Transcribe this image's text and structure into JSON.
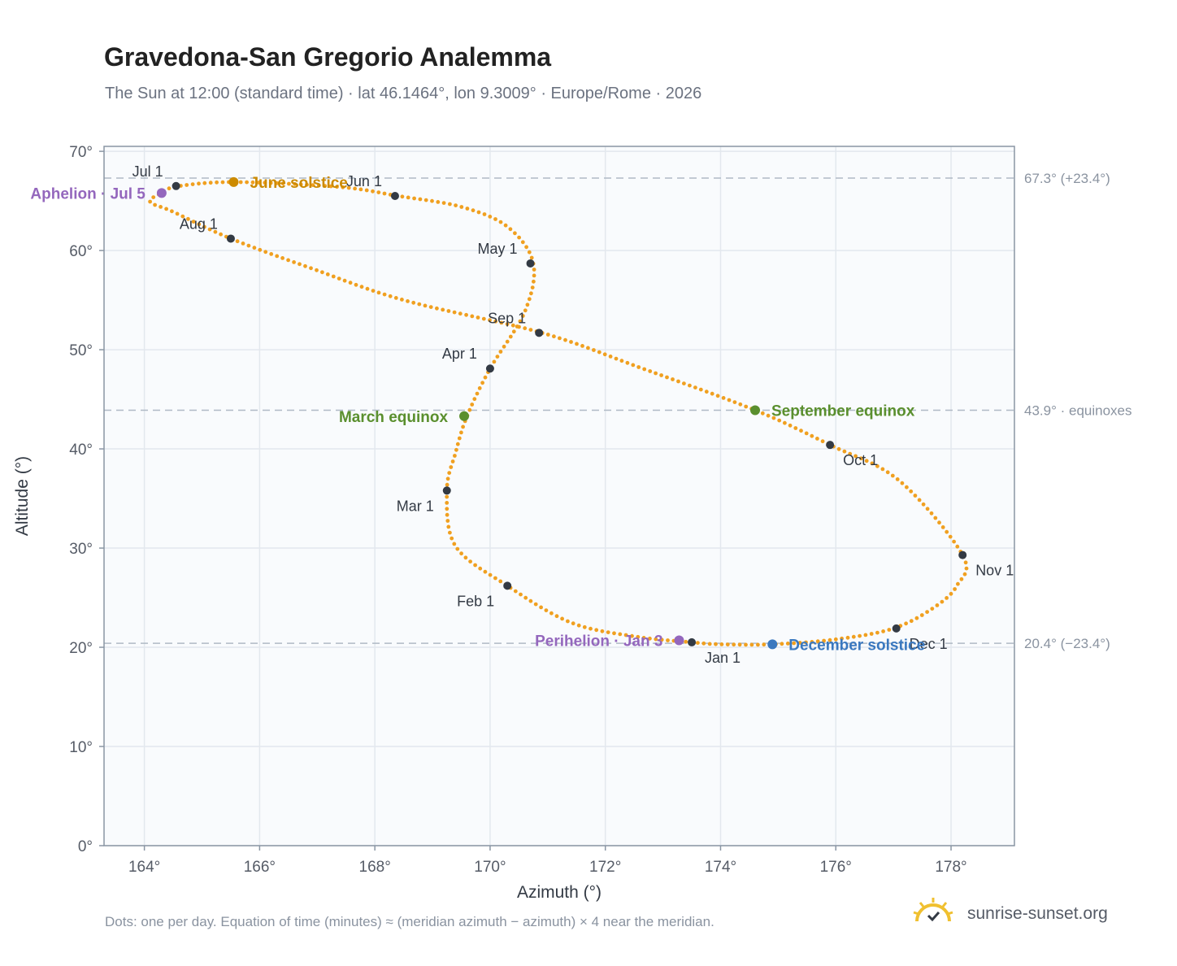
{
  "header": {
    "title": "Gravedona-San Gregorio Analemma",
    "subtitle": "The Sun at 12:00 (standard time) · lat 46.1464°, lon 9.3009° · Europe/Rome · 2026"
  },
  "footer": {
    "note": "Dots: one per day. Equation of time (minutes) ≈ (meridian azimuth − azimuth) × 4 near the meridian.",
    "brand": "sunrise-sunset.org"
  },
  "colors": {
    "curve": "#f0a020",
    "month_marker": "#333a44",
    "solstice_june": "#cc8a00",
    "equinox": "#5a8f2e",
    "solstice_december": "#3a78bf",
    "apsis": "#9467bd",
    "reference_line": "#b0bac5",
    "plot_background": "#f9fbfd",
    "grid": "#e3e8ee",
    "frame": "#8a96a4",
    "logo": "#f0c030"
  },
  "chart_data": {
    "type": "scatter",
    "title": "Gravedona-San Gregorio Analemma",
    "xlabel": "Azimuth (°)",
    "ylabel": "Altitude (°)",
    "xlim": [
      163.3,
      179.1
    ],
    "ylim": [
      0,
      70.5
    ],
    "x_ticks": [
      164,
      166,
      168,
      170,
      172,
      174,
      176,
      178
    ],
    "x_tick_labels": [
      "164°",
      "166°",
      "168°",
      "170°",
      "172°",
      "174°",
      "176°",
      "178°"
    ],
    "y_ticks": [
      0,
      10,
      20,
      30,
      40,
      50,
      60,
      70
    ],
    "y_tick_labels": [
      "0°",
      "10°",
      "20°",
      "30°",
      "40°",
      "50°",
      "60°",
      "70°"
    ],
    "grid": true,
    "series": [
      {
        "type": "line",
        "style": "daily-dots",
        "points": [
          [
            173.5,
            20.5
          ],
          [
            172.5,
            21.1
          ],
          [
            171.4,
            22.5
          ],
          [
            170.3,
            26.2
          ],
          [
            169.4,
            30.2
          ],
          [
            169.25,
            35.8
          ],
          [
            169.4,
            39.6
          ],
          [
            169.6,
            43.3
          ],
          [
            170.0,
            48.1
          ],
          [
            170.6,
            53.8
          ],
          [
            170.75,
            58.7
          ],
          [
            170.3,
            62.4
          ],
          [
            169.5,
            64.4
          ],
          [
            168.4,
            65.5
          ],
          [
            167.4,
            66.4
          ],
          [
            165.6,
            66.9
          ],
          [
            164.6,
            66.5
          ],
          [
            164.3,
            65.8
          ],
          [
            164.1,
            64.9
          ],
          [
            164.5,
            63.9
          ],
          [
            165.5,
            61.2
          ],
          [
            166.9,
            58.2
          ],
          [
            168.5,
            55.0
          ],
          [
            170.9,
            51.7
          ],
          [
            172.6,
            48.2
          ],
          [
            174.6,
            43.9
          ],
          [
            175.9,
            40.4
          ],
          [
            177.1,
            36.8
          ],
          [
            178.2,
            29.3
          ],
          [
            178.1,
            26.2
          ],
          [
            177.7,
            24.0
          ],
          [
            177.0,
            21.9
          ],
          [
            176.0,
            20.8
          ],
          [
            174.9,
            20.3
          ],
          [
            174.0,
            20.3
          ],
          [
            173.5,
            20.5
          ]
        ]
      }
    ],
    "month_markers": [
      {
        "label": "Jan 1",
        "azimuth": 173.5,
        "altitude": 20.5,
        "label_pos": "below-right"
      },
      {
        "label": "Feb 1",
        "azimuth": 170.3,
        "altitude": 26.2,
        "label_pos": "below-left"
      },
      {
        "label": "Mar 1",
        "azimuth": 169.25,
        "altitude": 35.8,
        "label_pos": "below-left"
      },
      {
        "label": "Apr 1",
        "azimuth": 170.0,
        "altitude": 48.1,
        "label_pos": "above-left"
      },
      {
        "label": "May 1",
        "azimuth": 170.7,
        "altitude": 58.7,
        "label_pos": "above-left"
      },
      {
        "label": "Jun 1",
        "azimuth": 168.35,
        "altitude": 65.5,
        "label_pos": "above-left"
      },
      {
        "label": "Jul 1",
        "azimuth": 164.55,
        "altitude": 66.5,
        "label_pos": "above-left"
      },
      {
        "label": "Aug 1",
        "azimuth": 165.5,
        "altitude": 61.2,
        "label_pos": "above-left"
      },
      {
        "label": "Sep 1",
        "azimuth": 170.85,
        "altitude": 51.7,
        "label_pos": "above-left"
      },
      {
        "label": "Oct 1",
        "azimuth": 175.9,
        "altitude": 40.4,
        "label_pos": "below-right"
      },
      {
        "label": "Nov 1",
        "azimuth": 178.2,
        "altitude": 29.3,
        "label_pos": "below-right"
      },
      {
        "label": "Dec 1",
        "azimuth": 177.05,
        "altitude": 21.9,
        "label_pos": "below-right"
      }
    ],
    "events": [
      {
        "label": "June solstice",
        "azimuth": 165.55,
        "altitude": 66.9,
        "color_key": "solstice_june",
        "label_pos": "right"
      },
      {
        "label": "March equinox",
        "azimuth": 169.55,
        "altitude": 43.3,
        "color_key": "equinox",
        "label_pos": "left"
      },
      {
        "label": "September equinox",
        "azimuth": 174.6,
        "altitude": 43.9,
        "color_key": "equinox",
        "label_pos": "right"
      },
      {
        "label": "December solstice",
        "azimuth": 174.9,
        "altitude": 20.3,
        "color_key": "solstice_december",
        "label_pos": "right"
      },
      {
        "label": "Aphelion · Jul 5",
        "azimuth": 164.3,
        "altitude": 65.8,
        "color_key": "apsis",
        "label_pos": "left"
      },
      {
        "label": "Perihelion · Jan 3",
        "azimuth": 173.28,
        "altitude": 20.7,
        "color_key": "apsis",
        "label_pos": "left"
      }
    ],
    "reference_lines": [
      {
        "altitude": 67.3,
        "label": "67.3° (+23.4°)"
      },
      {
        "altitude": 43.9,
        "label": "43.9° · equinoxes"
      },
      {
        "altitude": 20.4,
        "label": "20.4° (−23.4°)"
      }
    ]
  }
}
